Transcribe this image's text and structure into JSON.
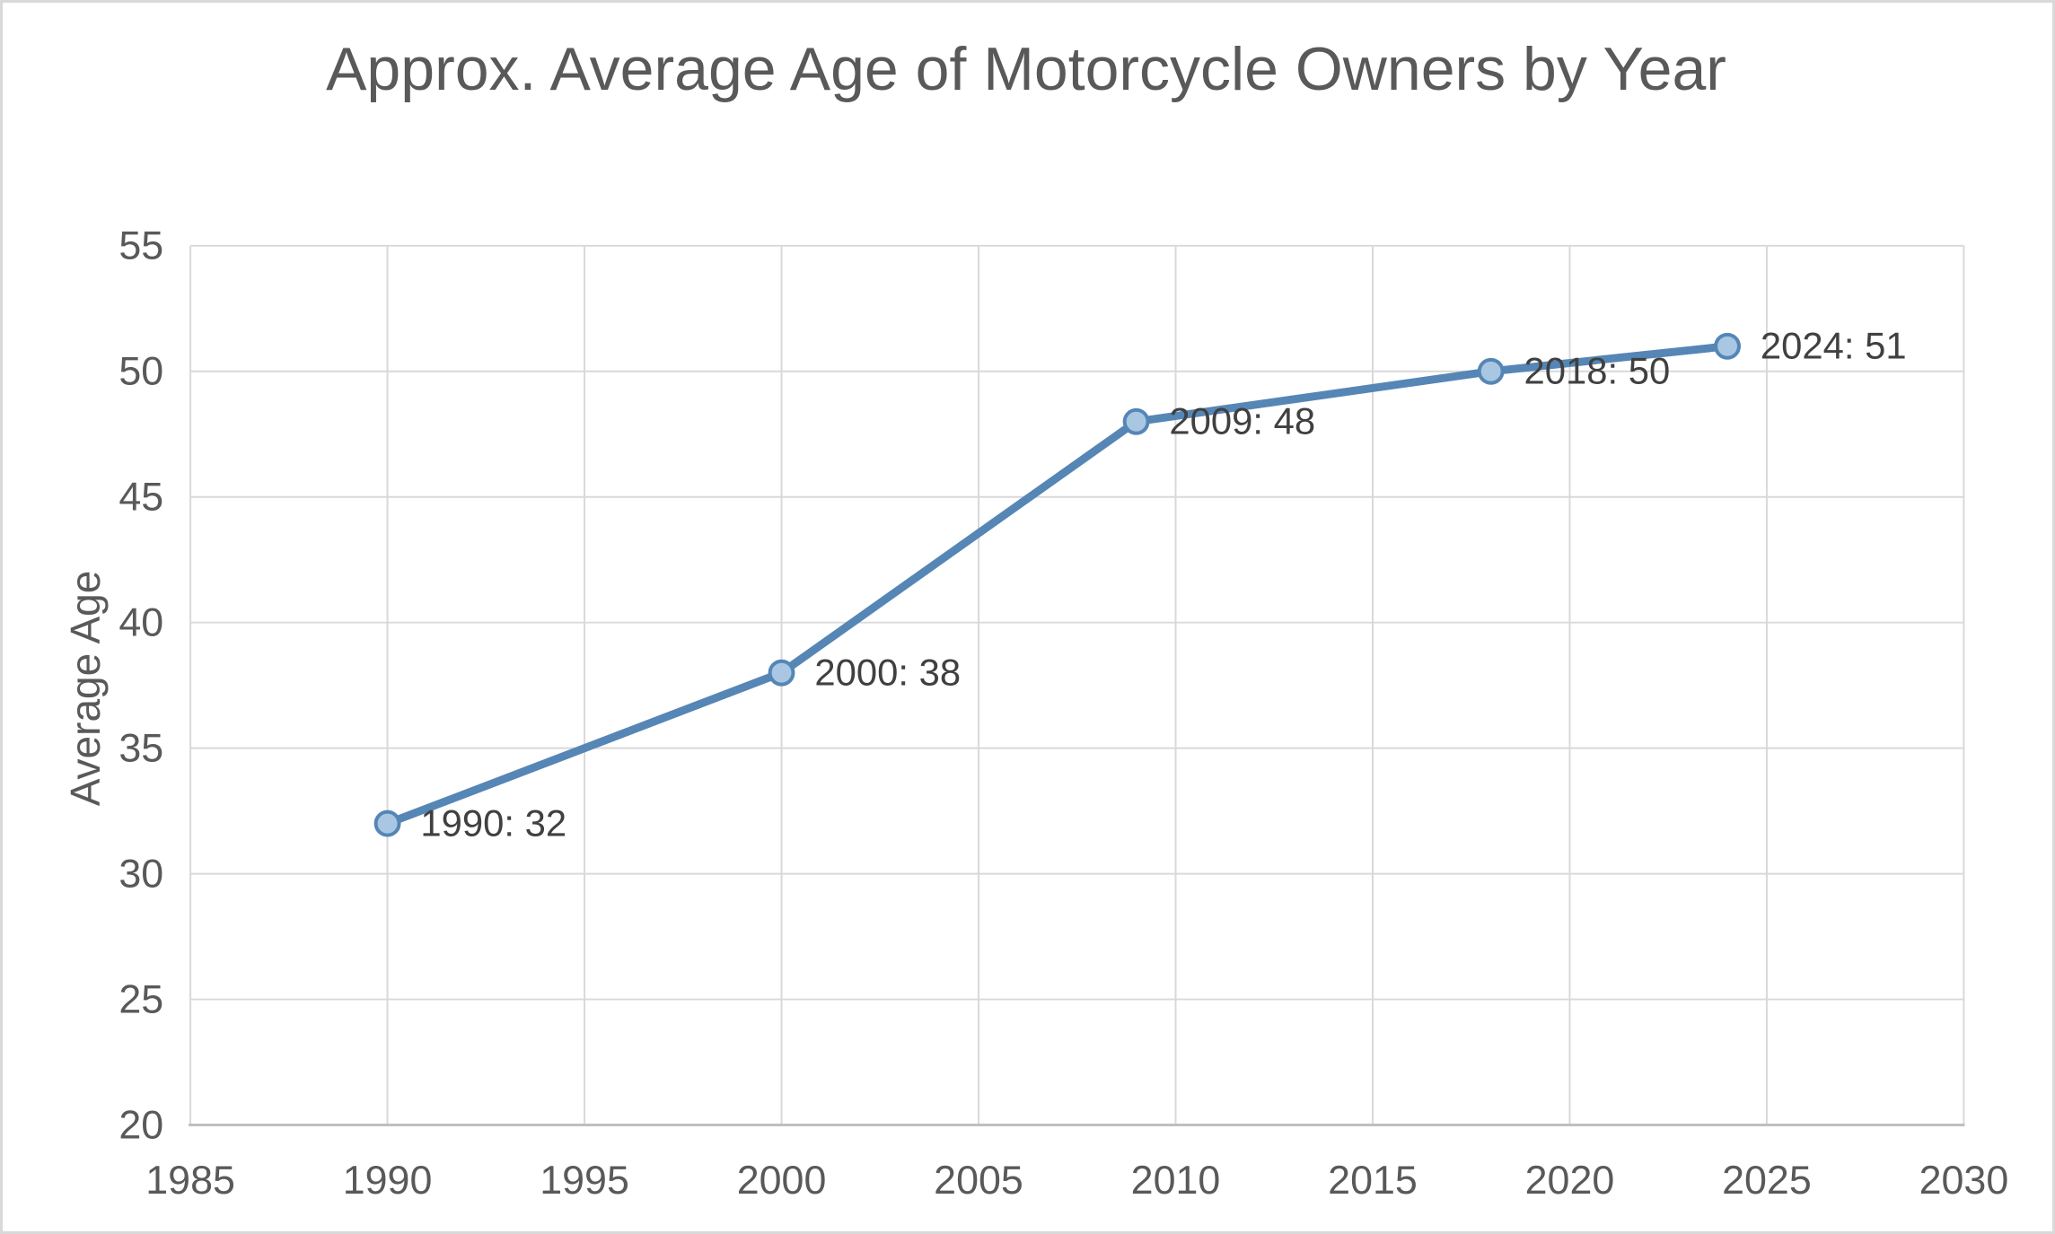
{
  "chart_data": {
    "type": "line",
    "title": "Approx. Average Age of Motorcycle Owners by Year",
    "xlabel": "",
    "ylabel": "Average Age",
    "series": [
      {
        "x": [
          1990,
          2000,
          2009,
          2018,
          2024
        ],
        "y": [
          32,
          38,
          48,
          50,
          51
        ],
        "point_labels": [
          "1990: 32",
          "2000: 38",
          "2009: 48",
          "2018: 50",
          "2024: 51"
        ]
      }
    ],
    "xlim": [
      1985,
      2030
    ],
    "ylim": [
      20,
      55
    ],
    "xticks": [
      "1985",
      "1990",
      "1995",
      "2000",
      "2005",
      "2010",
      "2015",
      "2020",
      "2025",
      "2030"
    ],
    "yticks": [
      "20",
      "25",
      "30",
      "35",
      "40",
      "45",
      "50",
      "55"
    ],
    "grid": true,
    "legend": false,
    "marker": "circle",
    "colors": {
      "line": "#5586B5",
      "marker_fill": "#A9C7E3",
      "marker_stroke": "#5586B5",
      "gridline": "#D9D9D9",
      "axis_line": "#BFBFBF",
      "tick_label": "#595959",
      "title": "#595959",
      "axis_title": "#595959",
      "data_label": "#404040"
    }
  }
}
